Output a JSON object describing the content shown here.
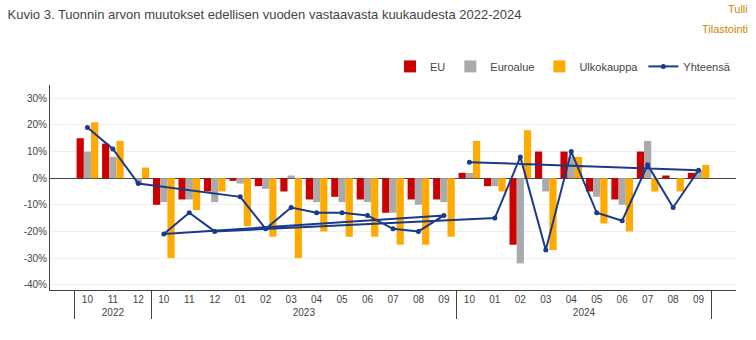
{
  "chart_data": {
    "type": "bar",
    "title": "Kuvio 3. Tuonnin arvon muutokset edellisen vuoden vastaavasta kuukaudesta 2022-2024",
    "categories": [
      [
        "2022",
        "10"
      ],
      [
        "2022",
        "11"
      ],
      [
        "2022",
        "12"
      ],
      [
        "2023",
        "01"
      ],
      [
        "2023",
        "02"
      ],
      [
        "2023",
        "03"
      ],
      [
        "2023",
        "04"
      ],
      [
        "2023",
        "05"
      ],
      [
        "2023",
        "06"
      ],
      [
        "2023",
        "07"
      ],
      [
        "2023",
        "08"
      ],
      [
        "2023",
        "09"
      ],
      [
        "2023",
        "10"
      ],
      [
        "2023",
        "11"
      ],
      [
        "2023",
        "12"
      ],
      [
        "2024",
        "01"
      ],
      [
        "2024",
        "02"
      ],
      [
        "2024",
        "03"
      ],
      [
        "2024",
        "04"
      ],
      [
        "2024",
        "05"
      ],
      [
        "2024",
        "06"
      ],
      [
        "2024",
        "07"
      ],
      [
        "2024",
        "08"
      ],
      [
        "2024",
        "09"
      ],
      [
        "2024",
        "10"
      ]
    ],
    "series": [
      {
        "name": "EU",
        "color": "#cc0000",
        "values": [
          15,
          13,
          0,
          -1,
          -3,
          -5,
          -8,
          -7,
          -8,
          -13,
          -8,
          -8,
          -10,
          -8,
          -5,
          -3,
          -25,
          10,
          10,
          -5,
          -8,
          10,
          1,
          2,
          2
        ]
      },
      {
        "name": "Euroalue",
        "color": "#aaaaaa",
        "values": [
          10,
          8,
          -2,
          -2,
          -4,
          1,
          -9,
          -9,
          -9,
          -13,
          -10,
          -9,
          -9,
          -8,
          -9,
          -3,
          -32,
          -5,
          8,
          -7,
          -10,
          14,
          0,
          3,
          2
        ]
      },
      {
        "name": "Ulkokauppa",
        "color": "#ffaa00",
        "values": [
          21,
          14,
          4,
          -18,
          -22,
          -30,
          -20,
          -22,
          -22,
          -25,
          -25,
          -22,
          -30,
          -12,
          -5,
          -5,
          18,
          -27,
          8,
          -17,
          -20,
          -5,
          -5,
          5,
          14
        ]
      },
      {
        "name": "Yhteensä",
        "type": "line",
        "color": "#1a3a8a",
        "marker": "circle",
        "values": [
          19,
          11,
          -2,
          -7,
          -19,
          -11,
          -13,
          -13,
          -14,
          -19,
          -20,
          -14,
          -21,
          -13,
          -20,
          -15,
          8,
          -27,
          10,
          -13,
          -16,
          5,
          -11,
          3,
          6
        ]
      }
    ],
    "ylim": [
      -42,
      35
    ],
    "yticks": [
      {
        "value": -40,
        "label": "-40%"
      },
      {
        "value": -30,
        "label": "-30%"
      },
      {
        "value": -20,
        "label": "-20%"
      },
      {
        "value": -10,
        "label": "-10%"
      },
      {
        "value": 0,
        "label": "0%"
      },
      {
        "value": 10,
        "label": "10%"
      },
      {
        "value": 20,
        "label": "20%"
      },
      {
        "value": 30,
        "label": "30%"
      }
    ],
    "grid": true,
    "legend": "upper right",
    "annotations": [
      {
        "text": "Tulli",
        "color": "#cc8800"
      },
      {
        "text": "Tilastointi",
        "color": "#cc8800"
      }
    ]
  }
}
